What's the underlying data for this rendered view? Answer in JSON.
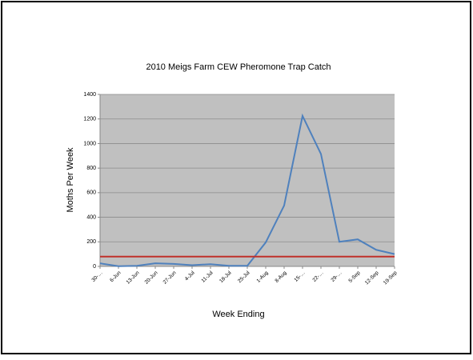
{
  "chart_data": {
    "type": "line",
    "title": "2010 Meigs Farm CEW Pheromone Trap Catch",
    "y_label": "Moths Per Week",
    "x_label": "Week Ending",
    "categories": [
      "30-…",
      "6-Jun",
      "13-Jun",
      "20-Jun",
      "27-Jun",
      "4-Jul",
      "11-Jul",
      "18-Jul",
      "25-Jul",
      "1-Aug",
      "8-Aug",
      "15-…",
      "22-…",
      "29-…",
      "5-Sep",
      "12-Sep",
      "19-Sep"
    ],
    "series": [
      {
        "color": "#4f81bd",
        "values": [
          25,
          2,
          5,
          25,
          20,
          10,
          18,
          5,
          5,
          195,
          495,
          1225,
          915,
          200,
          220,
          135,
          100
        ]
      },
      {
        "color": "#c0312b",
        "values": [
          80,
          80,
          80,
          80,
          80,
          80,
          80,
          80,
          80,
          80,
          80,
          80,
          80,
          80,
          80,
          80,
          80
        ]
      }
    ],
    "ylim": [
      0,
      1400
    ],
    "yticks": [
      0,
      200,
      400,
      600,
      800,
      1000,
      1200,
      1400
    ],
    "grid": true
  }
}
